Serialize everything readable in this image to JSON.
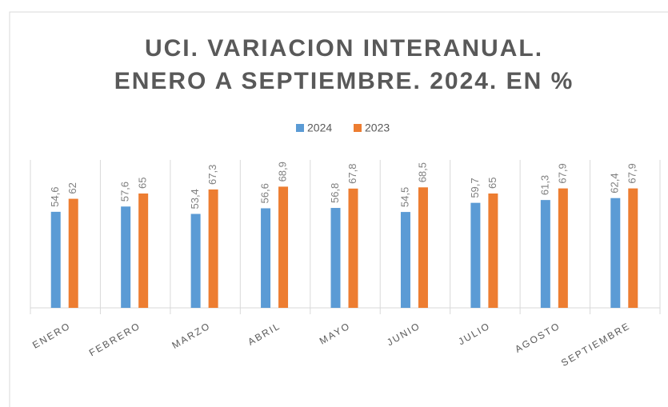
{
  "chart_data": {
    "type": "bar",
    "title": [
      "UCI. VARIACION INTERANUAL.",
      "ENERO A SEPTIEMBRE. 2024. EN %"
    ],
    "categories": [
      "ENERO",
      "FEBRERO",
      "MARZO",
      "ABRIL",
      "MAYO",
      "JUNIO",
      "JULIO",
      "AGOSTO",
      "SEPTIEMBRE"
    ],
    "series": [
      {
        "name": "2024",
        "color": "#5b9bd5",
        "values": [
          54.6,
          57.6,
          53.4,
          56.6,
          56.8,
          54.5,
          59.7,
          61.3,
          62.4
        ],
        "value_labels": [
          "54,6",
          "57,6",
          "53,4",
          "56,6",
          "56,8",
          "54,5",
          "59,7",
          "61,3",
          "62,4"
        ]
      },
      {
        "name": "2023",
        "color": "#ed7d31",
        "values": [
          62,
          65,
          67.3,
          68.9,
          67.8,
          68.5,
          65,
          67.9,
          67.9
        ],
        "value_labels": [
          "62",
          "65",
          "67,3",
          "68,9",
          "67,8",
          "68,5",
          "65",
          "67,9",
          "67,9"
        ]
      }
    ],
    "legend": "top"
  }
}
